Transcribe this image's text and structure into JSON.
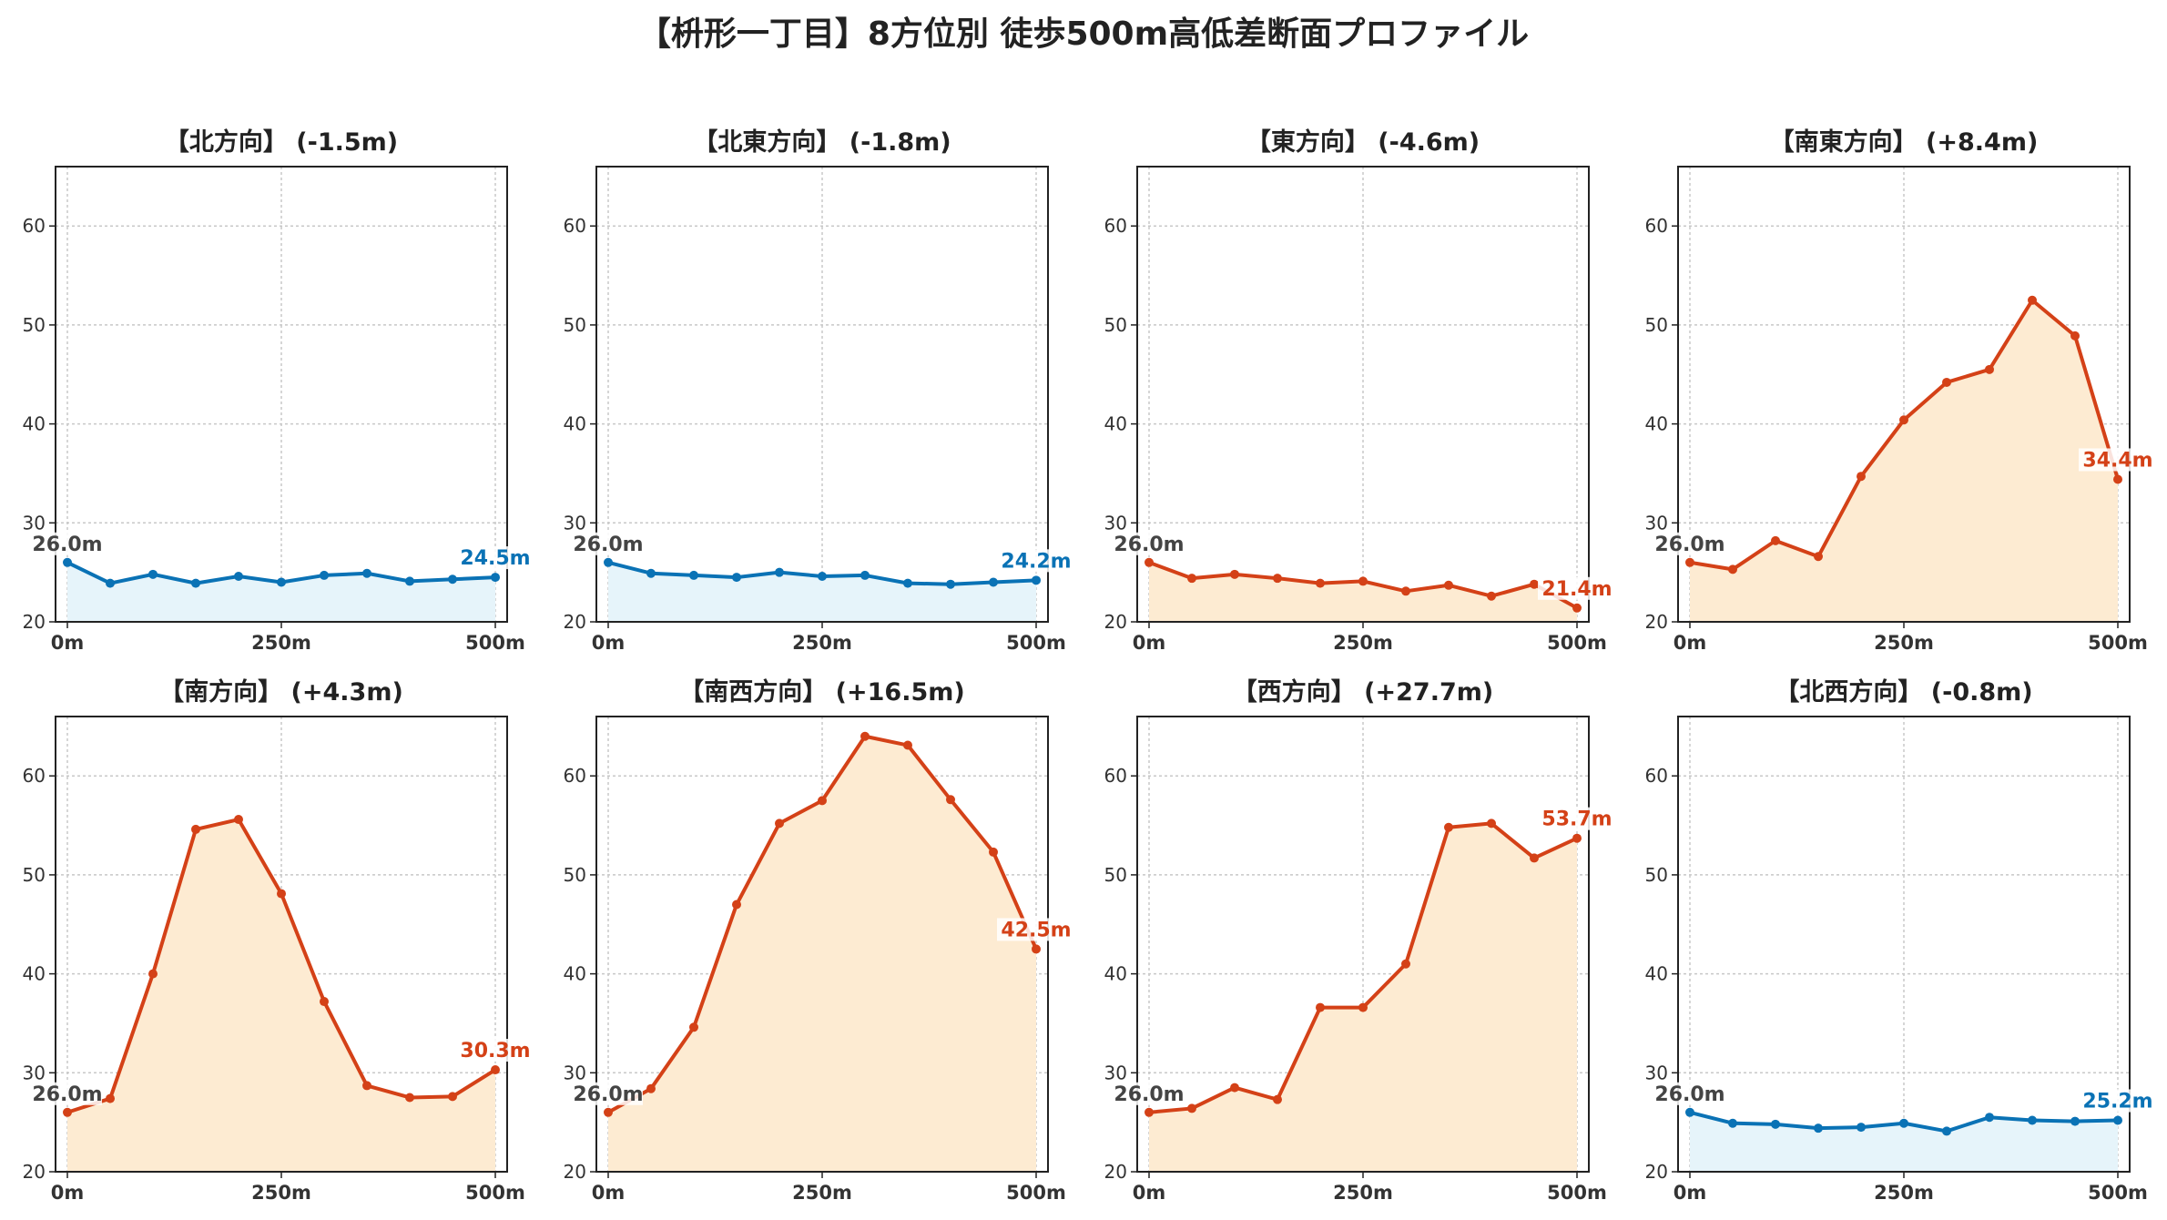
{
  "title": "【枡形一丁目】8方位別 徒歩500m高低差断面プロファイル",
  "colors": {
    "descent": "#0a72b5",
    "descent_fill": "#e6f4fa",
    "ascent": "#d44117",
    "ascent_fill": "#fdebd2",
    "start_label": "#444444"
  },
  "chart_data": [
    {
      "type": "area",
      "title": "【北方向】 (-1.5m)",
      "trend": "descent",
      "x": [
        0,
        50,
        100,
        150,
        200,
        250,
        300,
        350,
        400,
        450,
        500
      ],
      "y": [
        26.0,
        23.9,
        24.8,
        23.9,
        24.6,
        24.0,
        24.7,
        24.9,
        24.1,
        24.3,
        24.5
      ],
      "start_label": "26.0m",
      "end_label": "24.5m",
      "ylim": [
        20,
        66
      ],
      "yticks": [
        20,
        30,
        40,
        50,
        60
      ],
      "xticks": [
        0,
        250,
        500
      ],
      "xtick_labels": [
        "0m",
        "250m",
        "500m"
      ],
      "grid": true
    },
    {
      "type": "area",
      "title": "【北東方向】 (-1.8m)",
      "trend": "descent",
      "x": [
        0,
        50,
        100,
        150,
        200,
        250,
        300,
        350,
        400,
        450,
        500
      ],
      "y": [
        26.0,
        24.9,
        24.7,
        24.5,
        25.0,
        24.6,
        24.7,
        23.9,
        23.8,
        24.0,
        24.2
      ],
      "start_label": "26.0m",
      "end_label": "24.2m",
      "ylim": [
        20,
        66
      ],
      "yticks": [
        20,
        30,
        40,
        50,
        60
      ],
      "xticks": [
        0,
        250,
        500
      ],
      "xtick_labels": [
        "0m",
        "250m",
        "500m"
      ],
      "grid": true
    },
    {
      "type": "area",
      "title": "【東方向】 (-4.6m)",
      "trend": "ascent",
      "x": [
        0,
        50,
        100,
        150,
        200,
        250,
        300,
        350,
        400,
        450,
        500
      ],
      "y": [
        26.0,
        24.4,
        24.8,
        24.4,
        23.9,
        24.1,
        23.1,
        23.7,
        22.6,
        23.8,
        21.4
      ],
      "start_label": "26.0m",
      "end_label": "21.4m",
      "ylim": [
        20,
        66
      ],
      "yticks": [
        20,
        30,
        40,
        50,
        60
      ],
      "xticks": [
        0,
        250,
        500
      ],
      "xtick_labels": [
        "0m",
        "250m",
        "500m"
      ],
      "grid": true
    },
    {
      "type": "area",
      "title": "【南東方向】 (+8.4m)",
      "trend": "ascent",
      "x": [
        0,
        50,
        100,
        150,
        200,
        250,
        300,
        350,
        400,
        450,
        500
      ],
      "y": [
        26.0,
        25.3,
        28.2,
        26.6,
        34.7,
        40.4,
        44.2,
        45.5,
        52.5,
        48.9,
        34.4
      ],
      "start_label": "26.0m",
      "end_label": "34.4m",
      "ylim": [
        20,
        66
      ],
      "yticks": [
        20,
        30,
        40,
        50,
        60
      ],
      "xticks": [
        0,
        250,
        500
      ],
      "xtick_labels": [
        "0m",
        "250m",
        "500m"
      ],
      "grid": true
    },
    {
      "type": "area",
      "title": "【南方向】 (+4.3m)",
      "trend": "ascent",
      "x": [
        0,
        50,
        100,
        150,
        200,
        250,
        300,
        350,
        400,
        450,
        500
      ],
      "y": [
        26.0,
        27.4,
        40.0,
        54.6,
        55.6,
        48.1,
        37.2,
        28.7,
        27.5,
        27.6,
        30.3
      ],
      "start_label": "26.0m",
      "end_label": "30.3m",
      "ylim": [
        20,
        66
      ],
      "yticks": [
        20,
        30,
        40,
        50,
        60
      ],
      "xticks": [
        0,
        250,
        500
      ],
      "xtick_labels": [
        "0m",
        "250m",
        "500m"
      ],
      "grid": true
    },
    {
      "type": "area",
      "title": "【南西方向】 (+16.5m)",
      "trend": "ascent",
      "x": [
        0,
        50,
        100,
        150,
        200,
        250,
        300,
        350,
        400,
        450,
        500
      ],
      "y": [
        26.0,
        28.4,
        34.6,
        47.0,
        55.2,
        57.5,
        64.0,
        63.1,
        57.6,
        52.3,
        42.5
      ],
      "start_label": "26.0m",
      "end_label": "42.5m",
      "ylim": [
        20,
        66
      ],
      "yticks": [
        20,
        30,
        40,
        50,
        60
      ],
      "xticks": [
        0,
        250,
        500
      ],
      "xtick_labels": [
        "0m",
        "250m",
        "500m"
      ],
      "grid": true
    },
    {
      "type": "area",
      "title": "【西方向】 (+27.7m)",
      "trend": "ascent",
      "x": [
        0,
        50,
        100,
        150,
        200,
        250,
        300,
        350,
        400,
        450,
        500
      ],
      "y": [
        26.0,
        26.4,
        28.5,
        27.3,
        36.6,
        36.6,
        41.0,
        54.8,
        55.2,
        51.7,
        53.7
      ],
      "start_label": "26.0m",
      "end_label": "53.7m",
      "ylim": [
        20,
        66
      ],
      "yticks": [
        20,
        30,
        40,
        50,
        60
      ],
      "xticks": [
        0,
        250,
        500
      ],
      "xtick_labels": [
        "0m",
        "250m",
        "500m"
      ],
      "grid": true
    },
    {
      "type": "area",
      "title": "【北西方向】 (-0.8m)",
      "trend": "descent",
      "x": [
        0,
        50,
        100,
        150,
        200,
        250,
        300,
        350,
        400,
        450,
        500
      ],
      "y": [
        26.0,
        24.9,
        24.8,
        24.4,
        24.5,
        24.9,
        24.1,
        25.5,
        25.2,
        25.1,
        25.2
      ],
      "start_label": "26.0m",
      "end_label": "25.2m",
      "ylim": [
        20,
        66
      ],
      "yticks": [
        20,
        30,
        40,
        50,
        60
      ],
      "xticks": [
        0,
        250,
        500
      ],
      "xtick_labels": [
        "0m",
        "250m",
        "500m"
      ],
      "grid": true
    }
  ]
}
